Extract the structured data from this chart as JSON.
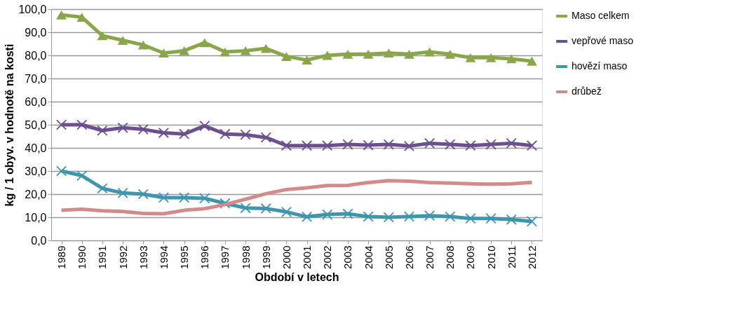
{
  "chart_data": {
    "type": "line",
    "xlabel": "Období v letech",
    "ylabel": "kg / 1 obyv. v hodnotě na kosti",
    "categories": [
      "1989",
      "1990",
      "1991",
      "1992",
      "1993",
      "1994",
      "1995",
      "1996",
      "1997",
      "1998",
      "1999",
      "2000",
      "2001",
      "2002",
      "2003",
      "2004",
      "2005",
      "2006",
      "2007",
      "2008",
      "2009",
      "2010",
      "2011",
      "2012"
    ],
    "series": [
      {
        "name": "Maso celkem",
        "color": "#8aa64a",
        "marker": "triangle",
        "values": [
          97.5,
          96.5,
          88.5,
          86.5,
          84.5,
          81,
          82,
          85.5,
          81.5,
          82,
          83,
          79.5,
          78,
          80,
          80.5,
          80.5,
          81,
          80.5,
          81.5,
          80.5,
          79,
          79,
          78.5,
          77.5
        ]
      },
      {
        "name": "vepřové maso",
        "color": "#6b4f8f",
        "marker": "cross",
        "values": [
          50,
          50,
          47.5,
          48.7,
          48,
          46.5,
          46,
          49.5,
          46,
          45.7,
          44.5,
          41,
          41,
          41,
          41.5,
          41.2,
          41.5,
          40.8,
          42,
          41.5,
          41,
          41.5,
          42,
          41
        ]
      },
      {
        "name": "hovězí maso",
        "color": "#3d96ad",
        "marker": "cross",
        "values": [
          30,
          28,
          22.5,
          20.5,
          20,
          18.5,
          18.5,
          18.2,
          16,
          14,
          13.8,
          12.3,
          10.2,
          11.2,
          11.5,
          10.3,
          10,
          10.3,
          10.7,
          10.3,
          9.5,
          9.5,
          9,
          8.2
        ]
      },
      {
        "name": "drůbež",
        "color": "#d38a8a",
        "marker": "none",
        "values": [
          13,
          13.5,
          12.8,
          12.5,
          11.7,
          11.5,
          13,
          13.7,
          15.5,
          17.8,
          20.2,
          22,
          22.7,
          23.7,
          23.8,
          25,
          25.8,
          25.6,
          25,
          24.8,
          24.5,
          24.3,
          24.5,
          25.1
        ]
      }
    ],
    "ylim": [
      0,
      100
    ],
    "yticks": [
      {
        "value": 0,
        "label": "0,0"
      },
      {
        "value": 10,
        "label": "10,0"
      },
      {
        "value": 20,
        "label": "20,0"
      },
      {
        "value": 30,
        "label": "30,0"
      },
      {
        "value": 40,
        "label": "40,0"
      },
      {
        "value": 50,
        "label": "50,0"
      },
      {
        "value": 60,
        "label": "60,0"
      },
      {
        "value": 70,
        "label": "70,0"
      },
      {
        "value": 80,
        "label": "80,0"
      },
      {
        "value": 90,
        "label": "90,0"
      },
      {
        "value": 100,
        "label": "100,0"
      }
    ],
    "grid": "y",
    "legend": "right",
    "line_style": "solid"
  }
}
